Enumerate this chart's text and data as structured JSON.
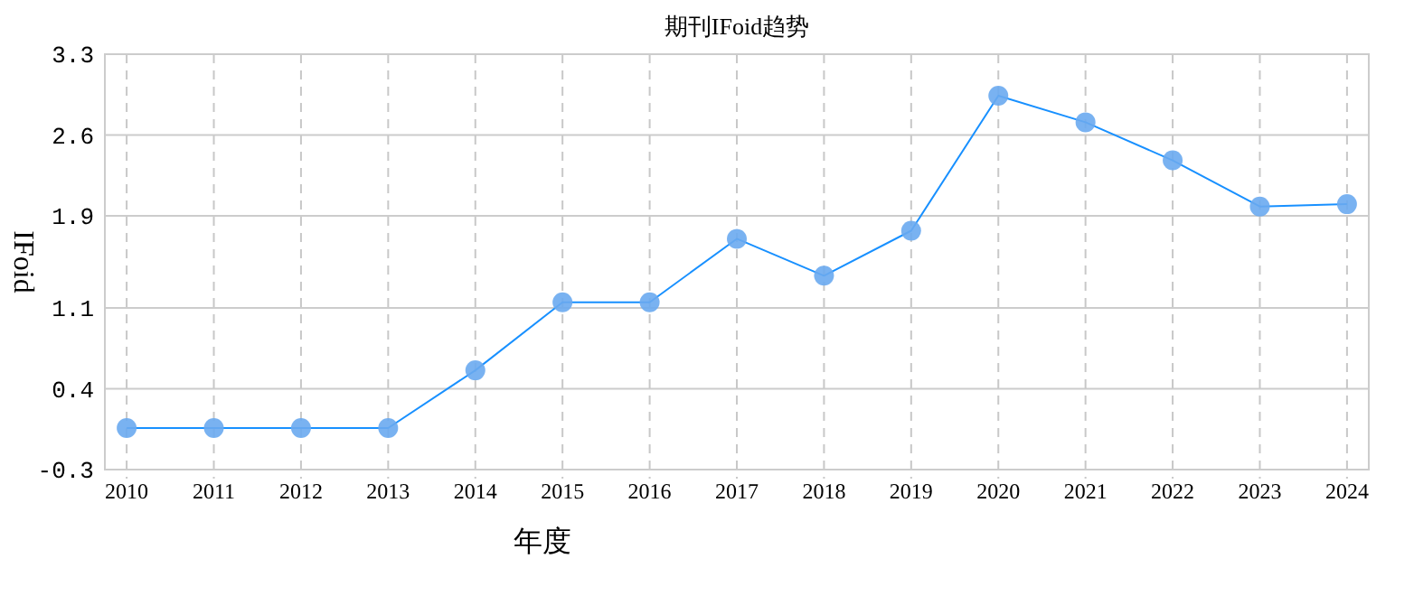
{
  "chart_data": {
    "type": "line",
    "title": "期刊IFoid趋势",
    "xlabel": "年度",
    "ylabel": "IFoid",
    "categories": [
      "2010",
      "2011",
      "2012",
      "2013",
      "2014",
      "2015",
      "2016",
      "2017",
      "2018",
      "2019",
      "2020",
      "2021",
      "2022",
      "2023",
      "2024"
    ],
    "series": [
      {
        "color": "#1890ff",
        "values": [
          0.06,
          0.06,
          0.06,
          0.06,
          0.56,
          1.15,
          1.15,
          1.7,
          1.38,
          1.77,
          2.94,
          2.71,
          2.38,
          1.98,
          2.0
        ]
      }
    ],
    "ylim": [
      -0.3,
      3.3
    ],
    "yticks": [
      -0.3,
      0.4,
      1.1,
      1.9,
      2.6,
      3.3
    ],
    "grid": true,
    "marker": "circle"
  }
}
